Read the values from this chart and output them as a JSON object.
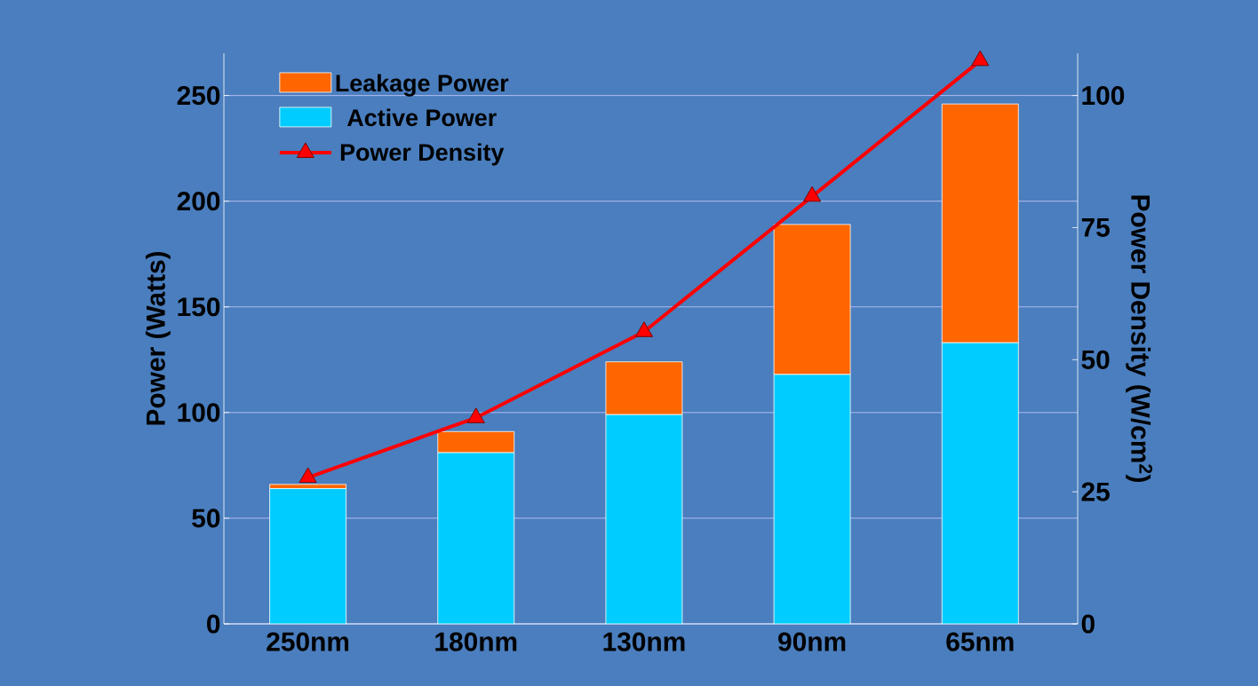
{
  "chart_data": {
    "type": "bar",
    "stacked": true,
    "categories": [
      "250nm",
      "180nm",
      "130nm",
      "90nm",
      "65nm"
    ],
    "series": [
      {
        "name": "Active Power",
        "color": "#00ccff",
        "values": [
          64,
          81,
          99,
          118,
          133
        ]
      },
      {
        "name": "Leakage Power",
        "color": "#ff6600",
        "values": [
          2,
          10,
          25,
          71,
          113
        ]
      },
      {
        "name": "Power Density",
        "type": "line",
        "axis": "y2",
        "color": "#ff0000",
        "marker": "triangle",
        "values": [
          27.7,
          39,
          55.3,
          80.9,
          106.6
        ]
      }
    ],
    "ylabel": "Power (Watts)",
    "y2label": "Power Density (W/cm$^{2}$)",
    "ylim": [
      0,
      270
    ],
    "yticks": [
      0,
      50,
      100,
      150,
      200,
      250
    ],
    "y2lim": [
      0,
      108
    ],
    "y2ticks": [
      0,
      25,
      50,
      75,
      100
    ],
    "grid": "y",
    "legend": "top left"
  }
}
